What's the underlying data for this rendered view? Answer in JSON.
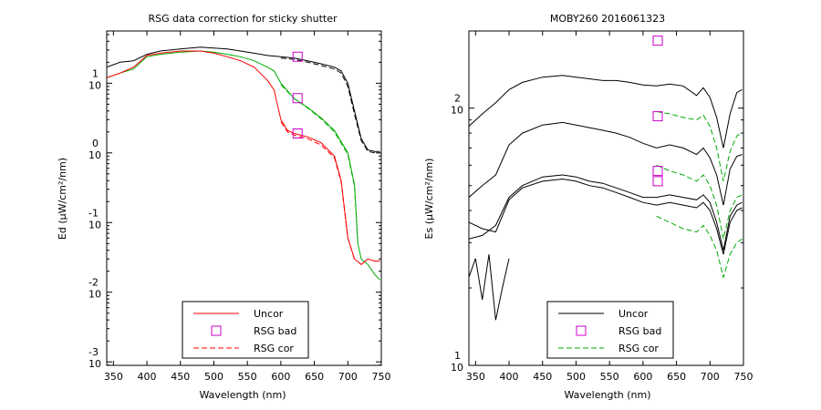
{
  "chart_data": [
    {
      "type": "line",
      "title": "RSG data correction for sticky shutter",
      "xlabel": "Wavelength (nm)",
      "ylabel": "Ed (µW/cm²/nm)",
      "xlim": [
        340,
        750
      ],
      "ylog": true,
      "ylim_log10": [
        -3.05,
        1.75
      ],
      "xticks": [
        "350",
        "400",
        "450",
        "500",
        "550",
        "600",
        "650",
        "700",
        "750"
      ],
      "yticks": [
        {
          "base": "10",
          "exp": "1"
        },
        {
          "base": "10",
          "exp": "0"
        },
        {
          "base": "10",
          "exp": "-1"
        },
        {
          "base": "10",
          "exp": "-2"
        },
        {
          "base": "10",
          "exp": "-3"
        }
      ],
      "legend_position": "bottom-center",
      "legend": [
        {
          "label": "Uncor",
          "style": "solid",
          "color": "#ff0000"
        },
        {
          "label": "RSG bad",
          "style": "marker",
          "color": "#cc00cc"
        },
        {
          "label": "RSG cor",
          "style": "dashed",
          "color": "#ff0000"
        }
      ],
      "series": [
        {
          "color": "#000000",
          "style": "solid",
          "x": [
            340,
            360,
            380,
            400,
            420,
            450,
            480,
            500,
            520,
            540,
            560,
            580,
            600,
            620,
            640,
            660,
            680,
            690,
            700,
            710,
            720,
            730,
            740,
            748
          ],
          "y": [
            17,
            20,
            21,
            26,
            29,
            31,
            33,
            32,
            31,
            29,
            27,
            25,
            24,
            23,
            21,
            19,
            17,
            15,
            10,
            4,
            1.6,
            1.1,
            1.05,
            1.05
          ]
        },
        {
          "color": "#000000",
          "style": "dashed",
          "x": [
            600,
            620,
            640,
            660,
            680,
            690,
            700,
            710,
            720,
            730,
            740,
            748
          ],
          "y": [
            23,
            22,
            20,
            18,
            16,
            14,
            9,
            3.6,
            1.5,
            1.05,
            1.0,
            1.0
          ]
        },
        {
          "color": "#00aa00",
          "style": "solid",
          "x": [
            340,
            360,
            380,
            400,
            420,
            450,
            480,
            500,
            520,
            540,
            560,
            580,
            590,
            600,
            620,
            640,
            660,
            680,
            700,
            710,
            715,
            720,
            730,
            740,
            748
          ],
          "y": [
            12,
            14,
            16,
            24,
            26,
            28,
            29,
            28,
            26,
            24,
            21,
            17,
            15,
            10,
            6,
            4.5,
            3.2,
            2.1,
            1,
            0.35,
            0.05,
            0.03,
            0.025,
            0.018,
            0.015
          ]
        },
        {
          "color": "#00aa00",
          "style": "dashed",
          "x": [
            600,
            620,
            640,
            660,
            680,
            700,
            710,
            715
          ],
          "y": [
            9.5,
            6,
            4.4,
            3.1,
            2,
            0.95,
            0.33,
            0.05
          ]
        },
        {
          "color": "#ff0000",
          "style": "solid",
          "x": [
            340,
            360,
            380,
            400,
            420,
            450,
            480,
            500,
            520,
            540,
            560,
            580,
            590,
            600,
            610,
            620,
            640,
            660,
            680,
            690,
            700,
            710,
            720,
            730,
            740,
            748
          ],
          "y": [
            12,
            14,
            17,
            25,
            27,
            29,
            29,
            27,
            24,
            21,
            17,
            11,
            8,
            3,
            2.1,
            1.9,
            1.7,
            1.4,
            0.9,
            0.4,
            0.06,
            0.03,
            0.025,
            0.03,
            0.028,
            0.028
          ]
        },
        {
          "color": "#ff0000",
          "style": "dashed",
          "x": [
            600,
            610,
            620,
            640,
            660,
            680,
            690,
            700,
            710
          ],
          "y": [
            2.8,
            2.0,
            1.8,
            1.6,
            1.3,
            0.85,
            0.38,
            0.06,
            0.03
          ]
        }
      ],
      "markers": [
        {
          "x": 625,
          "y": 24,
          "color": "#cc00cc"
        },
        {
          "x": 625,
          "y": 6.1,
          "color": "#cc00cc"
        },
        {
          "x": 625,
          "y": 1.9,
          "color": "#cc00cc"
        }
      ]
    },
    {
      "type": "line",
      "title": "MOBY260  2016061323",
      "xlabel": "Wavelength (nm)",
      "ylabel": "Es (µW/cm²/nm)",
      "xlim": [
        340,
        750
      ],
      "ylog": true,
      "ylim_log10": [
        1.0,
        2.3
      ],
      "xticks": [
        "350",
        "400",
        "450",
        "500",
        "550",
        "600",
        "650",
        "700",
        "750"
      ],
      "yticks": [
        {
          "base": "10",
          "exp": "2"
        },
        {
          "base": "10",
          "exp": "1"
        }
      ],
      "legend_position": "bottom-center",
      "legend": [
        {
          "label": "Uncor",
          "style": "solid",
          "color": "#000000"
        },
        {
          "label": "RSG bad",
          "style": "marker",
          "color": "#cc00cc"
        },
        {
          "label": "RSG cor",
          "style": "dashed",
          "color": "#00aa00"
        }
      ],
      "series": [
        {
          "color": "#000000",
          "style": "solid",
          "x": [
            340,
            360,
            380,
            400,
            420,
            450,
            480,
            500,
            520,
            540,
            560,
            580,
            600,
            620,
            640,
            660,
            680,
            690,
            700,
            710,
            720,
            730,
            740,
            748
          ],
          "y": [
            85,
            95,
            105,
            118,
            126,
            132,
            134,
            132,
            130,
            128,
            128,
            126,
            123,
            122,
            124,
            122,
            112,
            120,
            110,
            92,
            70,
            95,
            115,
            118
          ]
        },
        {
          "color": "#000000",
          "style": "solid",
          "x": [
            340,
            360,
            380,
            400,
            420,
            450,
            480,
            500,
            520,
            540,
            560,
            580,
            600,
            620,
            640,
            660,
            680,
            690,
            700,
            710,
            720,
            730,
            740,
            748
          ],
          "y": [
            45,
            50,
            55,
            72,
            80,
            86,
            88,
            86,
            84,
            82,
            80,
            77,
            73,
            70,
            72,
            70,
            66,
            70,
            64,
            55,
            42,
            58,
            65,
            66
          ]
        },
        {
          "color": "#000000",
          "style": "solid",
          "x": [
            340,
            360,
            380,
            400,
            420,
            450,
            480,
            500,
            520,
            540,
            560,
            580,
            600,
            620,
            640,
            660,
            680,
            690,
            700,
            710,
            720,
            730,
            740,
            748
          ],
          "y": [
            31,
            32,
            35,
            45,
            50,
            54,
            55,
            54,
            52,
            51,
            49,
            47,
            45,
            45,
            46,
            45,
            44,
            46,
            43,
            36,
            28,
            38,
            42,
            43
          ]
        },
        {
          "color": "#000000",
          "style": "solid",
          "x": [
            340,
            360,
            380,
            400,
            420,
            450,
            480,
            500,
            520,
            540,
            560,
            580,
            600,
            620,
            640,
            660,
            680,
            690,
            700,
            710,
            720,
            730,
            740,
            748
          ],
          "y": [
            36,
            34,
            33,
            44,
            49,
            52,
            53,
            52,
            50,
            49,
            47,
            45,
            43,
            42,
            43,
            42,
            41,
            43,
            40,
            34,
            27,
            36,
            40,
            41
          ]
        },
        {
          "color": "#000000",
          "style": "solid",
          "x": [
            340,
            350,
            360,
            370,
            380,
            390,
            400
          ],
          "y": [
            22,
            26,
            18,
            27,
            15,
            20,
            26
          ]
        },
        {
          "color": "#00aa00",
          "style": "dashed",
          "x": [
            620,
            640,
            660,
            680,
            690,
            700,
            710,
            720,
            730,
            740,
            748
          ],
          "y": [
            97,
            95,
            92,
            90,
            94,
            85,
            70,
            52,
            68,
            78,
            80
          ]
        },
        {
          "color": "#00aa00",
          "style": "dashed",
          "x": [
            620,
            640,
            660,
            680,
            690,
            700,
            710,
            720,
            730,
            740,
            748
          ],
          "y": [
            60,
            57,
            55,
            52,
            55,
            50,
            42,
            31,
            40,
            45,
            46
          ]
        },
        {
          "color": "#00aa00",
          "style": "dashed",
          "x": [
            620,
            640,
            660,
            680,
            690,
            700,
            710,
            720,
            730,
            740,
            748
          ],
          "y": [
            38,
            36,
            34,
            33,
            35,
            32,
            28,
            22,
            27,
            30,
            31
          ]
        }
      ],
      "markers": [
        {
          "x": 622,
          "y": 183,
          "color": "#cc00cc"
        },
        {
          "x": 622,
          "y": 93,
          "color": "#cc00cc"
        },
        {
          "x": 622,
          "y": 57,
          "color": "#cc00cc"
        },
        {
          "x": 622,
          "y": 52,
          "color": "#cc00cc"
        }
      ]
    }
  ]
}
